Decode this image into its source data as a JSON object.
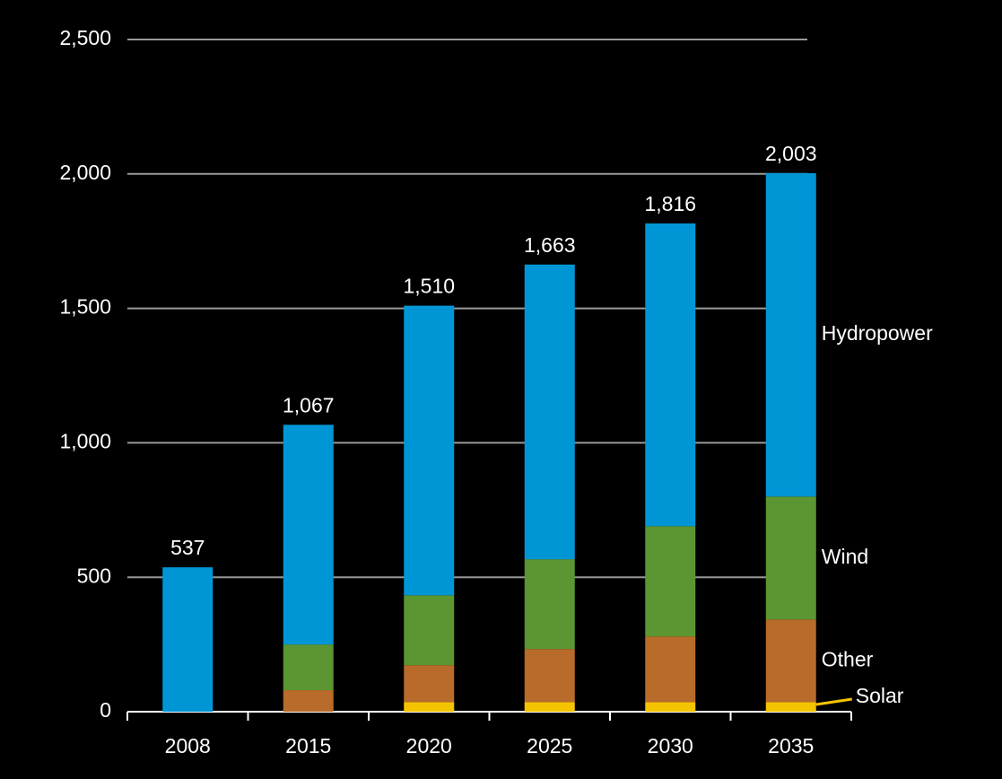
{
  "chart_data": {
    "type": "stacked_bar",
    "categories": [
      "2008",
      "2015",
      "2020",
      "2025",
      "2030",
      "2035"
    ],
    "series": [
      {
        "name": "Solar",
        "color": "#f5c400",
        "values": [
          0,
          0,
          35,
          35,
          35,
          35
        ]
      },
      {
        "name": "Other",
        "color": "#b86b2a",
        "values": [
          0,
          80,
          138,
          198,
          245,
          308
        ]
      },
      {
        "name": "Wind",
        "color": "#5b9632",
        "values": [
          0,
          170,
          260,
          334,
          410,
          457
        ]
      },
      {
        "name": "Hydropower",
        "color": "#0096d6",
        "values": [
          537,
          817,
          1077,
          1096,
          1126,
          1203
        ]
      }
    ],
    "totals": [
      537,
      1067,
      1510,
      1663,
      1816,
      2003
    ],
    "total_labels": [
      "537",
      "1,067",
      "1,510",
      "1,663",
      "1,816",
      "2,003"
    ],
    "ylim": [
      0,
      2500
    ],
    "yticks": [
      0,
      {
        "value": 500,
        "label": "500"
      },
      {
        "value": 1000,
        "label": "1,000"
      },
      {
        "value": 1500,
        "label": "1,500"
      },
      {
        "value": 2000,
        "label": "2,000"
      },
      {
        "value": 2500,
        "label": "2,500"
      }
    ],
    "grid": true
  }
}
